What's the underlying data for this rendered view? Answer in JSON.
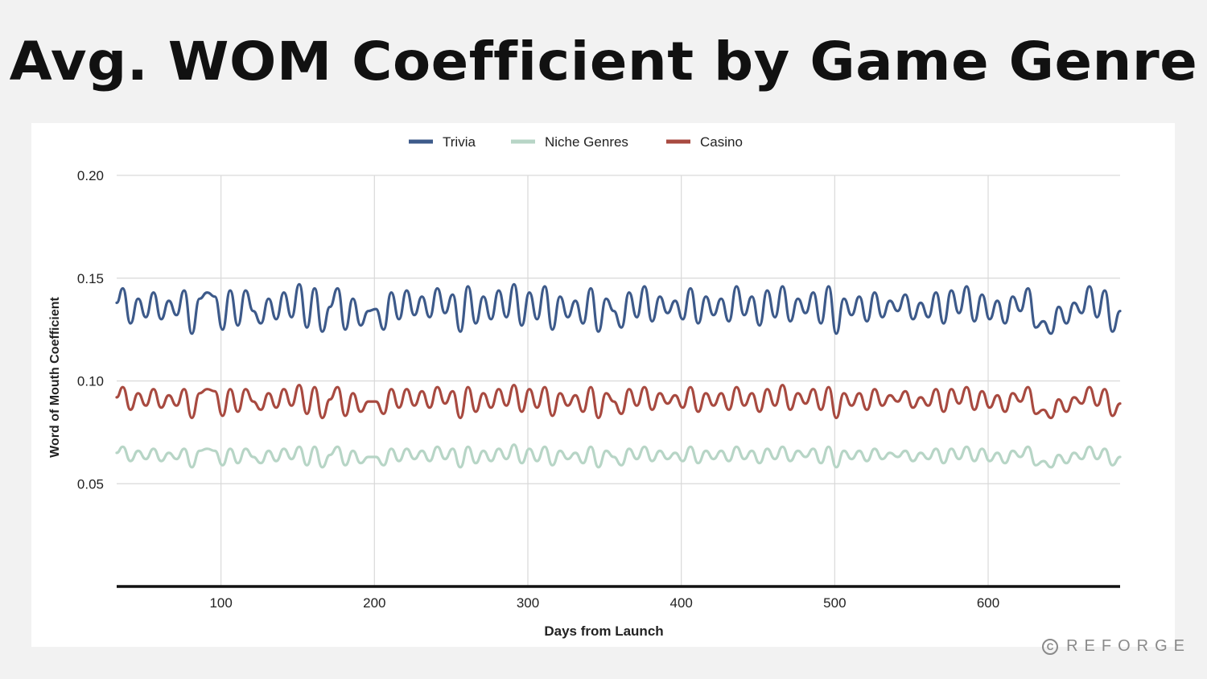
{
  "page": {
    "title": "Avg. WOM Coefficient by Game Genre"
  },
  "brand": {
    "icon": "copyright-icon",
    "text": "REFORGE"
  },
  "chart_data": {
    "type": "line",
    "title": "Avg. WOM Coefficient by Game Genre",
    "xlabel": "Days from Launch",
    "ylabel": "Word of Mouth Coefficient",
    "xlim": [
      32,
      686
    ],
    "ylim": [
      0,
      0.2
    ],
    "x_ticks": [
      100,
      200,
      300,
      400,
      500,
      600
    ],
    "y_ticks": [
      0.05,
      0.1,
      0.15,
      0.2
    ],
    "y_tick_labels": [
      "0.05",
      "0.10",
      "0.15",
      "0.20"
    ],
    "grid": true,
    "legend_position": "top-center",
    "series": [
      {
        "name": "Trivia",
        "color": "#3d5a8a",
        "x": [
          32,
          36,
          41,
          46,
          51,
          56,
          61,
          66,
          71,
          76,
          81,
          86,
          91,
          96,
          101,
          106,
          111,
          116,
          121,
          126,
          131,
          136,
          141,
          146,
          151,
          156,
          161,
          166,
          171,
          176,
          181,
          186,
          191,
          196,
          201,
          206,
          211,
          216,
          221,
          226,
          231,
          236,
          241,
          246,
          251,
          256,
          261,
          266,
          271,
          276,
          281,
          286,
          291,
          296,
          301,
          306,
          311,
          316,
          321,
          326,
          331,
          336,
          341,
          346,
          351,
          356,
          361,
          366,
          371,
          376,
          381,
          386,
          391,
          396,
          401,
          406,
          411,
          416,
          421,
          426,
          431,
          436,
          441,
          446,
          451,
          456,
          461,
          466,
          471,
          476,
          481,
          486,
          491,
          496,
          501,
          506,
          511,
          516,
          521,
          526,
          531,
          536,
          541,
          546,
          551,
          556,
          561,
          566,
          571,
          576,
          581,
          586,
          591,
          596,
          601,
          606,
          611,
          616,
          621,
          626,
          631,
          636,
          641,
          646,
          651,
          656,
          661,
          666,
          671,
          676,
          681,
          686
        ],
        "values": [
          0.138,
          0.145,
          0.128,
          0.14,
          0.131,
          0.143,
          0.13,
          0.139,
          0.132,
          0.144,
          0.123,
          0.14,
          0.143,
          0.141,
          0.125,
          0.144,
          0.127,
          0.144,
          0.134,
          0.128,
          0.14,
          0.13,
          0.143,
          0.131,
          0.147,
          0.126,
          0.145,
          0.124,
          0.136,
          0.145,
          0.125,
          0.14,
          0.127,
          0.134,
          0.135,
          0.125,
          0.143,
          0.13,
          0.144,
          0.132,
          0.141,
          0.131,
          0.145,
          0.133,
          0.142,
          0.124,
          0.146,
          0.128,
          0.141,
          0.13,
          0.144,
          0.131,
          0.147,
          0.127,
          0.143,
          0.13,
          0.146,
          0.125,
          0.141,
          0.131,
          0.139,
          0.128,
          0.145,
          0.124,
          0.14,
          0.134,
          0.126,
          0.143,
          0.131,
          0.146,
          0.129,
          0.141,
          0.133,
          0.139,
          0.13,
          0.145,
          0.128,
          0.141,
          0.132,
          0.14,
          0.129,
          0.146,
          0.132,
          0.141,
          0.127,
          0.144,
          0.131,
          0.146,
          0.129,
          0.14,
          0.133,
          0.143,
          0.128,
          0.146,
          0.123,
          0.14,
          0.132,
          0.141,
          0.129,
          0.143,
          0.131,
          0.139,
          0.134,
          0.142,
          0.13,
          0.138,
          0.131,
          0.143,
          0.128,
          0.144,
          0.133,
          0.146,
          0.129,
          0.142,
          0.13,
          0.139,
          0.128,
          0.141,
          0.134,
          0.145,
          0.126,
          0.129,
          0.123,
          0.136,
          0.128,
          0.138,
          0.133,
          0.146,
          0.131,
          0.144,
          0.124,
          0.134
        ]
      },
      {
        "name": "Niche Genres",
        "color": "#b7d5c6",
        "x": [
          32,
          36,
          41,
          46,
          51,
          56,
          61,
          66,
          71,
          76,
          81,
          86,
          91,
          96,
          101,
          106,
          111,
          116,
          121,
          126,
          131,
          136,
          141,
          146,
          151,
          156,
          161,
          166,
          171,
          176,
          181,
          186,
          191,
          196,
          201,
          206,
          211,
          216,
          221,
          226,
          231,
          236,
          241,
          246,
          251,
          256,
          261,
          266,
          271,
          276,
          281,
          286,
          291,
          296,
          301,
          306,
          311,
          316,
          321,
          326,
          331,
          336,
          341,
          346,
          351,
          356,
          361,
          366,
          371,
          376,
          381,
          386,
          391,
          396,
          401,
          406,
          411,
          416,
          421,
          426,
          431,
          436,
          441,
          446,
          451,
          456,
          461,
          466,
          471,
          476,
          481,
          486,
          491,
          496,
          501,
          506,
          511,
          516,
          521,
          526,
          531,
          536,
          541,
          546,
          551,
          556,
          561,
          566,
          571,
          576,
          581,
          586,
          591,
          596,
          601,
          606,
          611,
          616,
          621,
          626,
          631,
          636,
          641,
          646,
          651,
          656,
          661,
          666,
          671,
          676,
          681,
          686
        ],
        "values": [
          0.065,
          0.068,
          0.061,
          0.066,
          0.062,
          0.067,
          0.061,
          0.065,
          0.062,
          0.067,
          0.058,
          0.066,
          0.067,
          0.066,
          0.059,
          0.067,
          0.06,
          0.067,
          0.063,
          0.06,
          0.066,
          0.061,
          0.067,
          0.062,
          0.068,
          0.059,
          0.068,
          0.058,
          0.064,
          0.068,
          0.059,
          0.066,
          0.06,
          0.063,
          0.063,
          0.059,
          0.067,
          0.061,
          0.067,
          0.062,
          0.066,
          0.061,
          0.068,
          0.062,
          0.067,
          0.058,
          0.068,
          0.06,
          0.066,
          0.061,
          0.067,
          0.062,
          0.069,
          0.06,
          0.067,
          0.061,
          0.068,
          0.059,
          0.066,
          0.062,
          0.065,
          0.06,
          0.068,
          0.058,
          0.066,
          0.063,
          0.059,
          0.067,
          0.062,
          0.068,
          0.061,
          0.066,
          0.062,
          0.065,
          0.061,
          0.068,
          0.06,
          0.066,
          0.062,
          0.066,
          0.061,
          0.068,
          0.062,
          0.066,
          0.06,
          0.067,
          0.062,
          0.068,
          0.061,
          0.066,
          0.063,
          0.067,
          0.06,
          0.068,
          0.058,
          0.066,
          0.062,
          0.066,
          0.061,
          0.067,
          0.062,
          0.065,
          0.063,
          0.066,
          0.061,
          0.065,
          0.062,
          0.067,
          0.06,
          0.067,
          0.062,
          0.068,
          0.061,
          0.067,
          0.061,
          0.065,
          0.06,
          0.066,
          0.063,
          0.068,
          0.059,
          0.061,
          0.058,
          0.064,
          0.06,
          0.065,
          0.062,
          0.068,
          0.062,
          0.067,
          0.059,
          0.063
        ]
      },
      {
        "name": "Casino",
        "color": "#a84a40",
        "x": [
          32,
          36,
          41,
          46,
          51,
          56,
          61,
          66,
          71,
          76,
          81,
          86,
          91,
          96,
          101,
          106,
          111,
          116,
          121,
          126,
          131,
          136,
          141,
          146,
          151,
          156,
          161,
          166,
          171,
          176,
          181,
          186,
          191,
          196,
          201,
          206,
          211,
          216,
          221,
          226,
          231,
          236,
          241,
          246,
          251,
          256,
          261,
          266,
          271,
          276,
          281,
          286,
          291,
          296,
          301,
          306,
          311,
          316,
          321,
          326,
          331,
          336,
          341,
          346,
          351,
          356,
          361,
          366,
          371,
          376,
          381,
          386,
          391,
          396,
          401,
          406,
          411,
          416,
          421,
          426,
          431,
          436,
          441,
          446,
          451,
          456,
          461,
          466,
          471,
          476,
          481,
          486,
          491,
          496,
          501,
          506,
          511,
          516,
          521,
          526,
          531,
          536,
          541,
          546,
          551,
          556,
          561,
          566,
          571,
          576,
          581,
          586,
          591,
          596,
          601,
          606,
          611,
          616,
          621,
          626,
          631,
          636,
          641,
          646,
          651,
          656,
          661,
          666,
          671,
          676,
          681,
          686
        ],
        "values": [
          0.092,
          0.097,
          0.086,
          0.094,
          0.088,
          0.096,
          0.087,
          0.093,
          0.088,
          0.096,
          0.082,
          0.094,
          0.096,
          0.095,
          0.083,
          0.096,
          0.085,
          0.096,
          0.09,
          0.086,
          0.094,
          0.087,
          0.096,
          0.088,
          0.098,
          0.084,
          0.097,
          0.082,
          0.091,
          0.097,
          0.083,
          0.094,
          0.085,
          0.09,
          0.09,
          0.084,
          0.096,
          0.087,
          0.096,
          0.088,
          0.095,
          0.087,
          0.097,
          0.089,
          0.095,
          0.082,
          0.097,
          0.085,
          0.094,
          0.087,
          0.096,
          0.088,
          0.098,
          0.085,
          0.096,
          0.087,
          0.097,
          0.083,
          0.094,
          0.088,
          0.093,
          0.085,
          0.097,
          0.082,
          0.094,
          0.09,
          0.084,
          0.096,
          0.088,
          0.097,
          0.086,
          0.094,
          0.089,
          0.093,
          0.087,
          0.097,
          0.085,
          0.094,
          0.088,
          0.094,
          0.086,
          0.097,
          0.088,
          0.094,
          0.085,
          0.096,
          0.088,
          0.098,
          0.086,
          0.094,
          0.089,
          0.096,
          0.086,
          0.097,
          0.082,
          0.094,
          0.088,
          0.094,
          0.086,
          0.096,
          0.088,
          0.093,
          0.09,
          0.095,
          0.087,
          0.092,
          0.088,
          0.096,
          0.085,
          0.096,
          0.089,
          0.097,
          0.086,
          0.095,
          0.087,
          0.093,
          0.085,
          0.094,
          0.09,
          0.097,
          0.084,
          0.086,
          0.082,
          0.091,
          0.085,
          0.092,
          0.089,
          0.097,
          0.088,
          0.096,
          0.083,
          0.089
        ]
      }
    ]
  }
}
